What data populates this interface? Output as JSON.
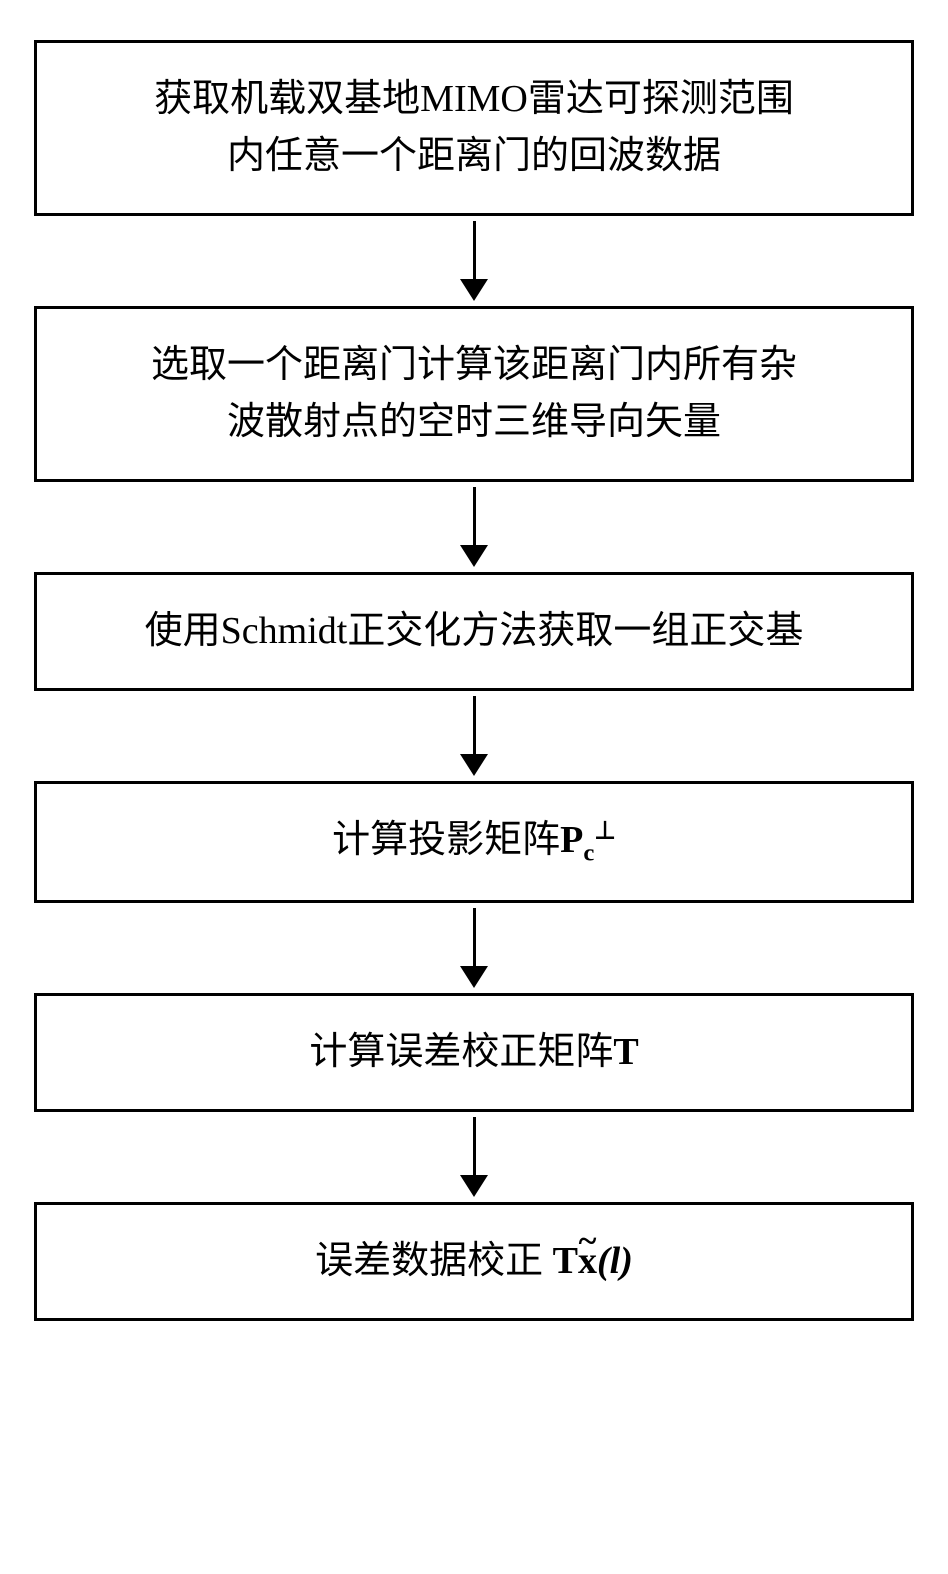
{
  "flowchart": {
    "type": "flowchart",
    "direction": "vertical",
    "box_border_color": "#000000",
    "box_border_width": 3,
    "box_background": "#ffffff",
    "text_color": "#000000",
    "font_size": 38,
    "font_family": "SimSun",
    "arrow_color": "#000000",
    "arrow_line_width": 3,
    "arrow_head_size": 22,
    "spacing": 90,
    "steps": [
      {
        "id": "step1",
        "text_line1": "获取机载双基地MIMO雷达可探测范围",
        "text_line2": "内任意一个距离门的回波数据"
      },
      {
        "id": "step2",
        "text_line1": "选取一个距离门计算该距离门内所有杂",
        "text_line2": "波散射点的空时三维导向矢量"
      },
      {
        "id": "step3",
        "text_line1": "使用Schmidt正交化方法获取一组正交基"
      },
      {
        "id": "step4",
        "text_prefix": "计算投影矩阵",
        "formula_main": "P",
        "formula_sub": "c",
        "formula_sup": "⊥"
      },
      {
        "id": "step5",
        "text_prefix": "计算误差校正矩阵",
        "formula_main": "T"
      },
      {
        "id": "step6",
        "text_prefix": "误差数据校正 ",
        "formula_T": "T",
        "formula_x": "x",
        "formula_arg": "(l)"
      }
    ]
  }
}
